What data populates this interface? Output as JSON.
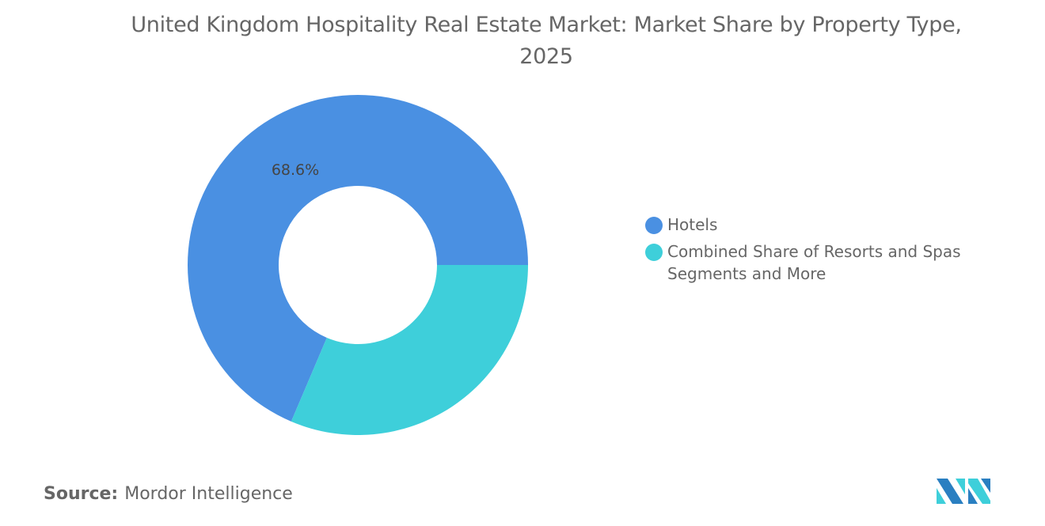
{
  "title": "United Kingdom Hospitality Real Estate Market: Market Share by Property Type, 2025",
  "source_label": "Source:",
  "source_value": "Mordor Intelligence",
  "chart_data": {
    "type": "donut",
    "title": "United Kingdom Hospitality Real Estate Market: Market Share by Property Type, 2025",
    "categories": [
      "Hotels",
      "Combined Share of Resorts and Spas Segments and More"
    ],
    "values": [
      68.6,
      31.4
    ],
    "data_labels": [
      "68.6%",
      ""
    ],
    "colors": [
      "#4A90E2",
      "#3ECFDA"
    ],
    "legend_placement": "right"
  }
}
